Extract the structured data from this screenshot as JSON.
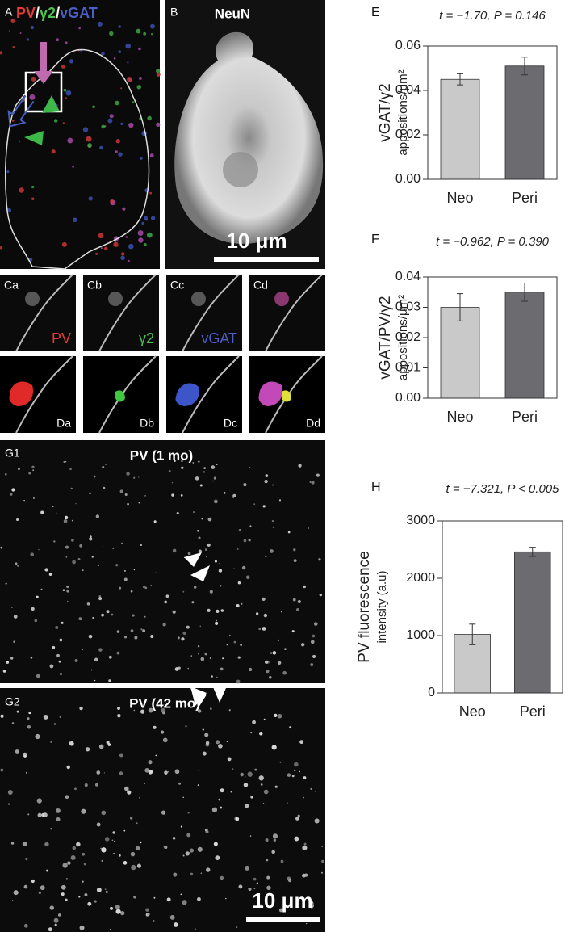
{
  "panels": {
    "A": {
      "label": "A",
      "title_parts": [
        "PV",
        "/",
        "γ2",
        "/",
        "vGAT"
      ]
    },
    "B": {
      "label": "B",
      "title": "NeuN",
      "scale_bar": "10 μm"
    },
    "C": [
      {
        "label": "Ca",
        "stain": "PV"
      },
      {
        "label": "Cb",
        "stain": "γ2"
      },
      {
        "label": "Cc",
        "stain": "vGAT"
      },
      {
        "label": "Cd"
      }
    ],
    "D": [
      {
        "label": "Da"
      },
      {
        "label": "Db"
      },
      {
        "label": "Dc"
      },
      {
        "label": "Dd"
      }
    ],
    "G1": {
      "label": "G1",
      "title": "PV (1 mo)"
    },
    "G2": {
      "label": "G2",
      "title": "PV (42 mo)",
      "scale_bar": "10 μm"
    }
  },
  "chart_data": [
    {
      "type": "bar",
      "panel": "E",
      "title": "t = −1.70, P = 0.146",
      "ylabel": [
        "vGAT/γ2",
        "appositions/μm²"
      ],
      "categories": [
        "Neo",
        "Peri"
      ],
      "values": [
        0.045,
        0.051
      ],
      "errors": [
        0.0025,
        0.004
      ],
      "colors": [
        "#c9c9ca",
        "#6c6c70"
      ],
      "ylim": [
        0,
        0.06
      ],
      "yticks": [
        {
          "value": 0,
          "label": "0.00"
        },
        0.02,
        0.04,
        0.06
      ]
    },
    {
      "type": "bar",
      "panel": "F",
      "title": "t = −0.962, P = 0.390",
      "ylabel": [
        "vGAT/PV/γ2",
        "appositions/μm²"
      ],
      "categories": [
        "Neo",
        "Peri"
      ],
      "values": [
        0.03,
        0.035
      ],
      "errors": [
        0.0045,
        0.003
      ],
      "colors": [
        "#c9c9ca",
        "#6c6c70"
      ],
      "ylim": [
        0,
        0.04
      ],
      "yticks": [
        {
          "value": 0,
          "label": "0.00"
        },
        0.01,
        0.02,
        0.03,
        0.04
      ]
    },
    {
      "type": "bar",
      "panel": "H",
      "title": "t = −7.321, P < 0.005",
      "ylabel": [
        "PV fluorescence",
        "intensity (a.u)"
      ],
      "categories": [
        "Neo",
        "Peri"
      ],
      "values": [
        1020,
        2460
      ],
      "errors": [
        180,
        80
      ],
      "colors": [
        "#c9c9ca",
        "#6c6c70"
      ],
      "ylim": [
        0,
        3000
      ],
      "yticks": [
        0,
        1000,
        2000,
        3000
      ]
    }
  ]
}
